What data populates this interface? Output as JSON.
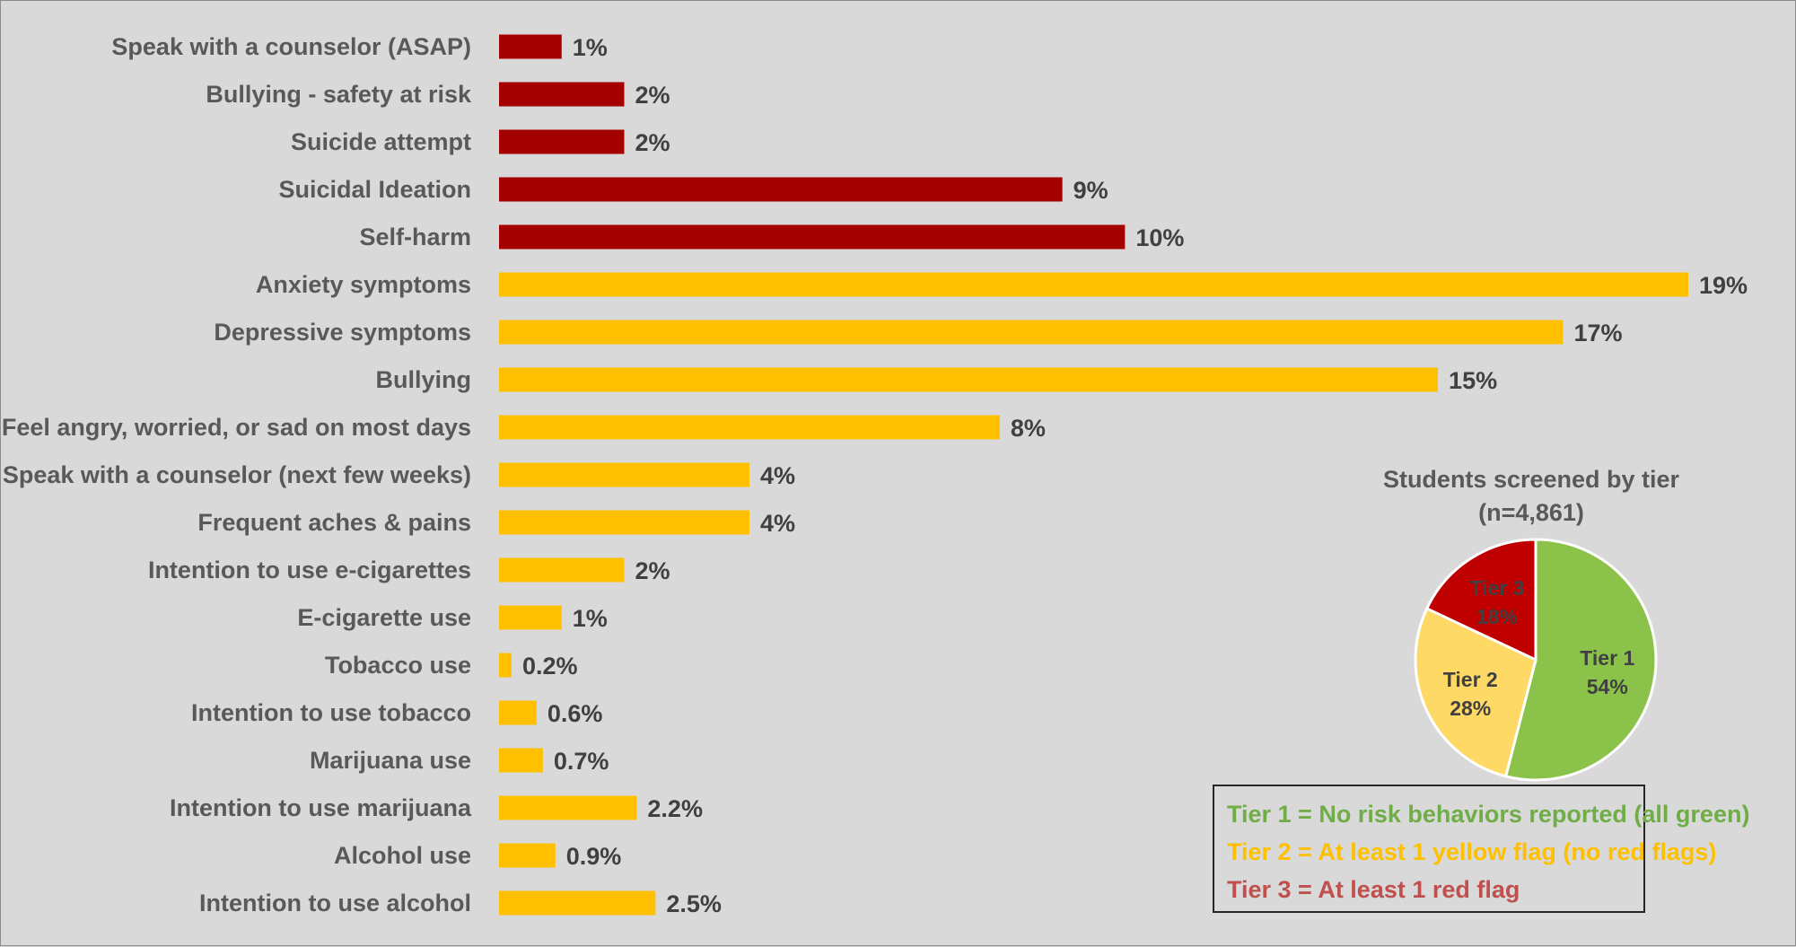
{
  "chart_data": [
    {
      "type": "bar",
      "orientation": "horizontal",
      "categories": [
        "Speak with a counselor (ASAP)",
        "Bullying - safety at risk",
        "Suicide attempt",
        "Suicidal Ideation",
        "Self-harm",
        "Anxiety symptoms",
        "Depressive symptoms",
        "Bullying",
        "Feel angry, worried, or sad on most days",
        "Speak with a counselor (next few weeks)",
        "Frequent aches & pains",
        "Intention to use e-cigarettes",
        "E-cigarette use",
        "Tobacco use",
        "Intention to use tobacco",
        "Marijuana use",
        "Intention to use marijuana",
        "Alcohol use",
        "Intention to use alcohol"
      ],
      "values": [
        1,
        2,
        2,
        9,
        10,
        19,
        17,
        15,
        8,
        4,
        4,
        2,
        1,
        0.2,
        0.6,
        0.7,
        2.2,
        0.9,
        2.5
      ],
      "value_labels": [
        "1%",
        "2%",
        "2%",
        "9%",
        "10%",
        "19%",
        "17%",
        "15%",
        "8%",
        "4%",
        "4%",
        "2%",
        "1%",
        "0.2%",
        "0.6%",
        "0.7%",
        "2.2%",
        "0.9%",
        "2.5%"
      ],
      "bar_colors": [
        "#a50000",
        "#a50000",
        "#a50000",
        "#a50000",
        "#a50000",
        "#ffc000",
        "#ffc000",
        "#ffc000",
        "#ffc000",
        "#ffc000",
        "#ffc000",
        "#ffc000",
        "#ffc000",
        "#ffc000",
        "#ffc000",
        "#ffc000",
        "#ffc000",
        "#ffc000",
        "#ffc000"
      ],
      "xlim": [
        0,
        19
      ],
      "grid": false,
      "title": "",
      "xlabel": "",
      "ylabel": ""
    },
    {
      "type": "pie",
      "title": "Students screened by tier",
      "subtitle": "(n=4,861)",
      "slices": [
        {
          "name": "Tier 1",
          "value": 54,
          "label": "54%",
          "color": "#8bc34a"
        },
        {
          "name": "Tier 2",
          "value": 28,
          "label": "28%",
          "color": "#ffd966"
        },
        {
          "name": "Tier 3",
          "value": 18,
          "label": "18%",
          "color": "#c00000"
        }
      ]
    }
  ],
  "legend": {
    "items": [
      {
        "text": "Tier 1 = No risk behaviors reported (all green)",
        "color": "#70ad47"
      },
      {
        "text": "Tier 2 = At least 1 yellow flag (no red flags)",
        "color": "#ffc000"
      },
      {
        "text": "Tier 3 = At least 1 red flag",
        "color": "#c0504d"
      }
    ]
  }
}
